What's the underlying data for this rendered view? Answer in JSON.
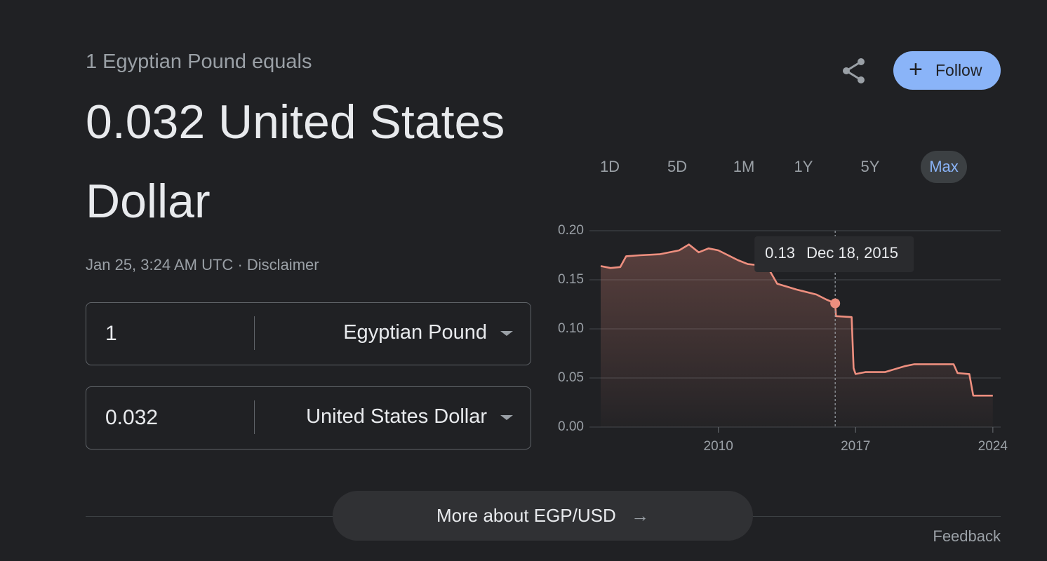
{
  "header": {
    "subtitle": "1 Egyptian Pound equals",
    "result": "0.032 United States Dollar",
    "timestamp": "Jan 25, 3:24 AM UTC",
    "separator": "·",
    "disclaimer": "Disclaimer"
  },
  "actions": {
    "follow": "Follow"
  },
  "converter": {
    "rows": [
      {
        "amount": "1",
        "currency": "Egyptian Pound"
      },
      {
        "amount": "0.032",
        "currency": "United States Dollar"
      }
    ]
  },
  "ranges": [
    "1D",
    "5D",
    "1M",
    "1Y",
    "5Y",
    "Max"
  ],
  "selected_range": "Max",
  "chart_data": {
    "type": "line",
    "x": [
      2004.0,
      2004.5,
      2005.0,
      2005.3,
      2006.0,
      2007.0,
      2008.0,
      2008.5,
      2009.0,
      2009.5,
      2010.0,
      2011.0,
      2011.5,
      2012.0,
      2012.6,
      2013.0,
      2013.5,
      2014.0,
      2015.0,
      2015.5,
      2015.96,
      2016.0,
      2016.8,
      2016.9,
      2017.0,
      2017.5,
      2018.5,
      2019.5,
      2020.0,
      2021.0,
      2022.0,
      2022.2,
      2022.8,
      2023.0,
      2024.0
    ],
    "values": [
      0.164,
      0.162,
      0.163,
      0.174,
      0.175,
      0.176,
      0.18,
      0.186,
      0.178,
      0.182,
      0.18,
      0.17,
      0.166,
      0.165,
      0.16,
      0.146,
      0.143,
      0.14,
      0.135,
      0.13,
      0.126,
      0.113,
      0.112,
      0.06,
      0.054,
      0.056,
      0.056,
      0.062,
      0.064,
      0.064,
      0.064,
      0.055,
      0.054,
      0.032,
      0.032
    ],
    "color": "#ee8f7f",
    "xlim": [
      2004,
      2024.4
    ],
    "ylim": [
      0,
      0.2
    ],
    "xticks": [
      2010,
      2017,
      2024
    ],
    "yticks": [
      {
        "value": 0,
        "label": "0.00"
      },
      0.05,
      {
        "value": 0.1,
        "label": "0.10"
      },
      0.15,
      {
        "value": 0.2,
        "label": "0.20"
      }
    ],
    "grid": true,
    "marker": {
      "x": 2015.96,
      "value": 0.126,
      "label": "0.13",
      "date": "Dec 18, 2015"
    }
  },
  "footer": {
    "more": "More about EGP/USD",
    "feedback": "Feedback"
  }
}
